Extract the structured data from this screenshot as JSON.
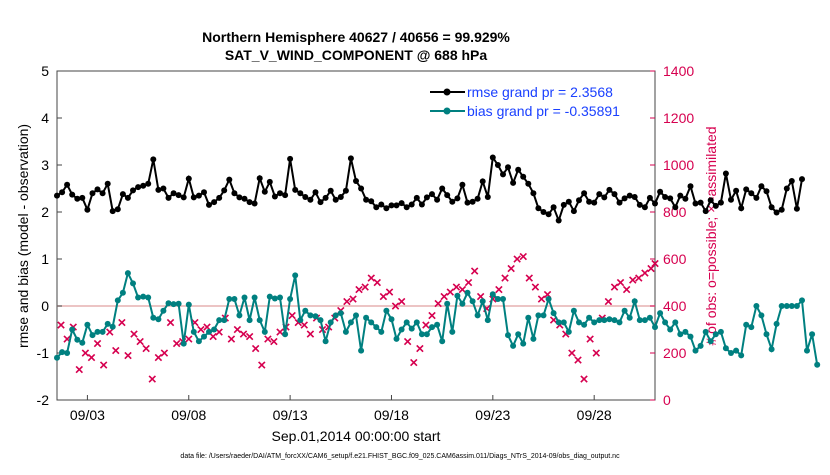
{
  "chart_data": {
    "type": "line",
    "title_line1": "Northern Hemisphere 40627 / 40656 = 99.929%",
    "title_line2": "SAT_V_WIND_COMPONENT @ 688 hPa",
    "xlabel": "Sep.01,2014 00:00:00 start",
    "ylabel_left": "rmse and bias (model - observation)",
    "ylabel_right": "# of obs: o=possible; ×=assimilated",
    "footer": "data file: /Users/raeder/DAI/ATM_forcXX/CAM6_setup/f.e21.FHIST_BGC.f09_025.CAM6assim.011/Diags_NTrS_2014-09/obs_diag_output.nc",
    "x_ticks": [
      "09/03",
      "09/08",
      "09/13",
      "09/18",
      "09/23",
      "09/28"
    ],
    "x_tick_days": [
      3,
      8,
      13,
      18,
      23,
      28
    ],
    "xlim": [
      1.5,
      31
    ],
    "ylim_left": [
      -2,
      5
    ],
    "yticks_left": [
      -2,
      -1,
      0,
      1,
      2,
      3,
      4,
      5
    ],
    "ylim_right": [
      0,
      1400
    ],
    "yticks_right": [
      0,
      200,
      400,
      600,
      800,
      1000,
      1200,
      1400
    ],
    "zero_line": 0,
    "colors": {
      "rmse": "#000000",
      "bias": "#008080",
      "obs": "#d6004f",
      "zero": "#e6b0b0"
    },
    "series": [
      {
        "name": "rmse",
        "legend": "rmse grand pr = 2.3568",
        "x_start": 1.5,
        "x_step": 0.25,
        "values": [
          2.35,
          2.42,
          2.58,
          2.37,
          2.28,
          2.3,
          2.05,
          2.4,
          2.48,
          2.4,
          2.6,
          2.02,
          2.06,
          2.38,
          2.3,
          2.46,
          2.53,
          2.56,
          2.6,
          3.12,
          2.47,
          2.5,
          2.3,
          2.4,
          2.36,
          2.31,
          2.71,
          2.31,
          2.35,
          2.42,
          2.15,
          2.21,
          2.3,
          2.46,
          2.69,
          2.4,
          2.31,
          2.28,
          2.21,
          2.18,
          2.72,
          2.43,
          2.64,
          2.33,
          2.4,
          2.36,
          3.13,
          2.47,
          2.4,
          2.32,
          2.26,
          2.42,
          2.21,
          2.3,
          2.45,
          2.26,
          2.32,
          2.45,
          3.14,
          2.66,
          2.5,
          2.26,
          2.23,
          2.1,
          2.16,
          2.08,
          2.14,
          2.14,
          2.19,
          2.1,
          2.16,
          2.3,
          2.16,
          2.31,
          2.38,
          2.26,
          2.5,
          2.36,
          2.22,
          2.29,
          2.58,
          2.2,
          2.22,
          2.28,
          2.65,
          2.32,
          3.16,
          3.0,
          2.8,
          2.95,
          2.62,
          2.9,
          2.75,
          2.6,
          2.4,
          2.08,
          2.0,
          1.95,
          2.1,
          1.82,
          2.15,
          2.22,
          2.02,
          2.25,
          2.4,
          2.22,
          2.2,
          2.38,
          2.31,
          2.47,
          2.38,
          2.2,
          2.29,
          2.35,
          2.32,
          2.15,
          2.1,
          2.3,
          2.18,
          2.43,
          2.32,
          2.29,
          2.1,
          2.35,
          2.28,
          2.55,
          2.18,
          2.2,
          2.02,
          2.25,
          2.13,
          2.2,
          2.82,
          2.26,
          2.45,
          2.08,
          2.48,
          2.4,
          2.3,
          2.55,
          2.44,
          2.1,
          1.99,
          2.05,
          2.5,
          2.66,
          2.07,
          2.7
        ]
      },
      {
        "name": "bias",
        "legend": "bias grand pr = -0.35891",
        "x_start": 1.5,
        "x_step": 0.25,
        "values": [
          -1.1,
          -0.98,
          -1.0,
          -0.5,
          -0.72,
          -0.78,
          -0.4,
          -0.62,
          -0.55,
          -0.55,
          -0.38,
          -0.44,
          0.12,
          0.28,
          0.7,
          0.48,
          0.18,
          0.2,
          0.18,
          -0.25,
          -0.28,
          -0.1,
          0.06,
          0.04,
          0.05,
          -0.8,
          0.03,
          -0.55,
          -0.75,
          -0.65,
          -0.55,
          -0.5,
          -0.3,
          -0.3,
          0.15,
          0.15,
          -0.2,
          0.18,
          -0.3,
          0.18,
          -0.3,
          -0.55,
          0.2,
          0.16,
          0.18,
          -0.6,
          0.15,
          0.65,
          -0.3,
          -0.1,
          -0.2,
          -0.22,
          -0.3,
          -0.75,
          -0.35,
          -0.2,
          -0.15,
          -0.55,
          -0.35,
          -0.2,
          -0.95,
          -0.25,
          -0.35,
          -0.45,
          -0.55,
          -0.1,
          -0.28,
          -0.7,
          -0.5,
          -0.35,
          -0.48,
          -0.35,
          -0.6,
          -0.6,
          -0.45,
          -0.4,
          -0.75,
          0.05,
          -0.55,
          0.22,
          0.05,
          0.28,
          0.1,
          -0.2,
          0.1,
          -0.3,
          0.25,
          0.15,
          0.15,
          -0.62,
          -0.85,
          -0.6,
          -0.8,
          -0.25,
          -0.7,
          -0.2,
          -0.2,
          0.15,
          -0.15,
          -0.35,
          -0.35,
          -0.55,
          -0.1,
          -0.35,
          -0.4,
          -0.25,
          -0.35,
          -0.3,
          -0.3,
          -0.28,
          -0.3,
          -0.35,
          -0.1,
          -0.25,
          0.1,
          -0.3,
          -0.3,
          -0.25,
          -0.45,
          -0.15,
          -0.35,
          -0.5,
          -0.35,
          -0.6,
          -0.55,
          -0.65,
          -0.95,
          -0.85,
          -0.55,
          -0.75,
          -0.6,
          -0.55,
          -0.9,
          -1.0,
          -0.95,
          -1.05,
          -0.4,
          -0.45,
          0.0,
          -0.2,
          -0.6,
          -0.92,
          -0.38,
          0.0,
          0.0,
          0.0,
          0.0,
          0.12,
          -0.95,
          -0.6,
          -1.25
        ]
      }
    ],
    "obs_assimilated": {
      "marker": "×",
      "x": [
        1.7,
        2.0,
        2.3,
        2.6,
        2.9,
        3.2,
        3.5,
        3.8,
        4.1,
        4.4,
        4.7,
        5.0,
        5.3,
        5.6,
        5.9,
        6.2,
        6.5,
        6.8,
        7.1,
        7.4,
        7.7,
        8.0,
        8.3,
        8.6,
        8.9,
        9.2,
        9.5,
        9.8,
        10.1,
        10.4,
        10.7,
        11.0,
        11.3,
        11.6,
        11.9,
        12.2,
        12.5,
        12.8,
        13.1,
        13.4,
        13.7,
        14.0,
        14.3,
        14.6,
        14.9,
        15.2,
        15.5,
        15.8,
        16.1,
        16.4,
        16.7,
        17.0,
        17.3,
        17.6,
        17.9,
        18.2,
        18.5,
        18.8,
        19.1,
        19.4,
        19.7,
        20.0,
        20.3,
        20.6,
        20.9,
        21.2,
        21.5,
        21.8,
        22.1,
        22.4,
        22.7,
        23.0,
        23.3,
        23.6,
        23.9,
        24.2,
        24.5,
        24.8,
        25.1,
        25.4,
        25.7,
        26.0,
        26.3,
        26.6,
        26.9,
        27.2,
        27.5,
        27.8,
        28.1,
        28.4,
        28.7,
        29.0,
        29.3,
        29.6,
        29.9,
        30.2,
        30.5,
        30.8,
        31.0
      ],
      "values": [
        320,
        260,
        310,
        130,
        200,
        180,
        240,
        150,
        290,
        210,
        330,
        190,
        280,
        250,
        220,
        90,
        180,
        200,
        330,
        240,
        250,
        260,
        330,
        300,
        310,
        270,
        290,
        350,
        260,
        300,
        280,
        270,
        220,
        150,
        260,
        250,
        290,
        310,
        360,
        330,
        320,
        280,
        350,
        300,
        310,
        350,
        380,
        420,
        430,
        470,
        480,
        520,
        500,
        440,
        460,
        400,
        420,
        250,
        160,
        220,
        320,
        360,
        410,
        440,
        460,
        480,
        470,
        500,
        550,
        440,
        390,
        430,
        470,
        520,
        560,
        600,
        610,
        520,
        480,
        430,
        450,
        340,
        320,
        280,
        200,
        170,
        90,
        260,
        200,
        350,
        420,
        480,
        500,
        470,
        510,
        520,
        540,
        560,
        580
      ]
    }
  }
}
